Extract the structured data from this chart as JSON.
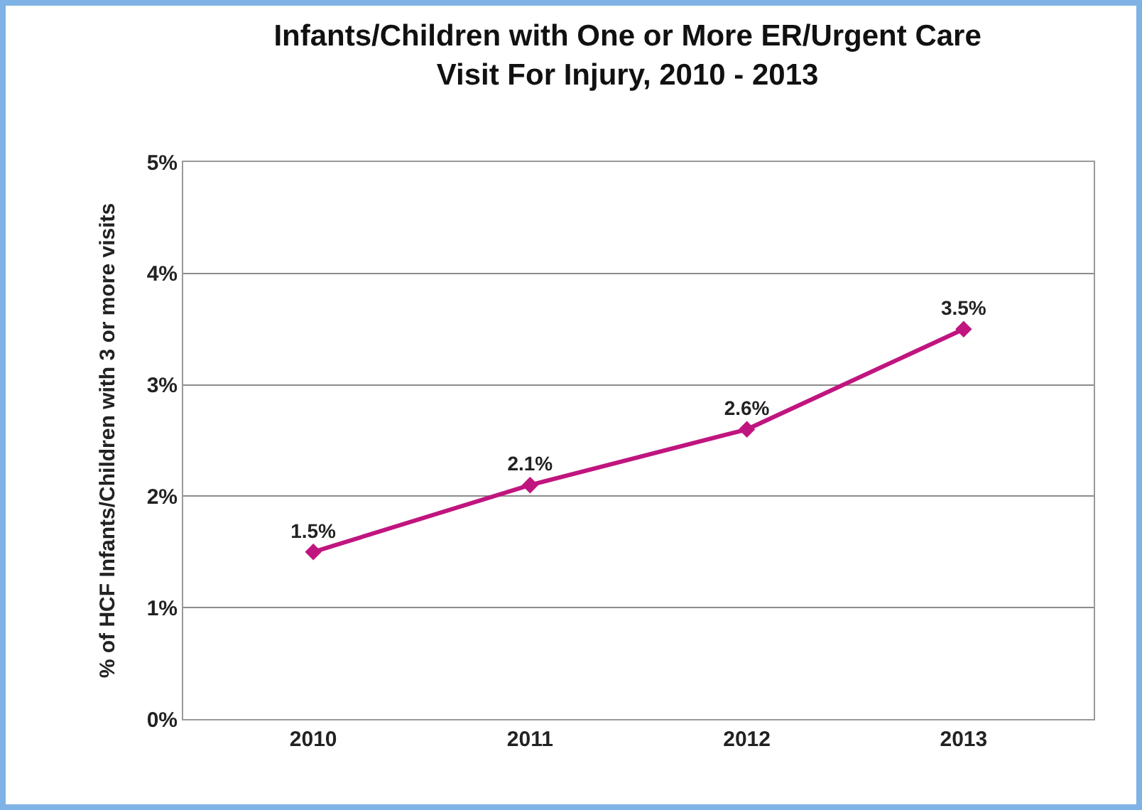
{
  "chart_data": {
    "type": "line",
    "title": "Infants/Children with One or More ER/Urgent Care\nVisit For Injury, 2010 - 2013",
    "ylabel": "% of HCF Infants/Children with 3 or more visits",
    "categories": [
      "2010",
      "2011",
      "2012",
      "2013"
    ],
    "series": [
      {
        "color": "#c0157f",
        "values": [
          1.5,
          2.1,
          2.6,
          3.5
        ],
        "value_labels": [
          "1.5%",
          "2.1%",
          "2.6%",
          "3.5%"
        ]
      }
    ],
    "ylim": [
      0,
      5
    ],
    "yticks": [
      {
        "value": 0,
        "label": "0%"
      },
      {
        "value": 1,
        "label": "1%"
      },
      {
        "value": 2,
        "label": "2%"
      },
      {
        "value": 3,
        "label": "3%"
      },
      {
        "value": 4,
        "label": "4%"
      },
      {
        "value": 5,
        "label": "5%"
      }
    ],
    "grid": "y",
    "marker": "diamond",
    "line_style": "solid"
  }
}
